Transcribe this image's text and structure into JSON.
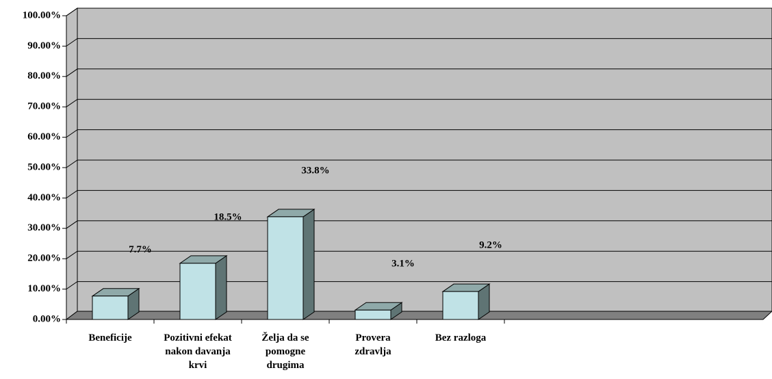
{
  "chart_data": {
    "type": "bar3d",
    "categories": [
      "Beneficije",
      "Pozitivni efekat nakon davanja krvi",
      "Želja da se pomogne drugima",
      "Provera zdravlja",
      "Bez razloga"
    ],
    "values": [
      7.7,
      18.5,
      33.8,
      3.1,
      9.2
    ],
    "value_labels": [
      "7.7%",
      "18.5%",
      "33.8%",
      "3.1%",
      "9.2%"
    ],
    "color": "#c0e2e6",
    "ylim": [
      0,
      100
    ],
    "yticks": [
      {
        "value": 0,
        "label": "0.00%"
      },
      {
        "value": 10,
        "label": "10.00%"
      },
      {
        "value": 20,
        "label": "20.00%"
      },
      {
        "value": 30,
        "label": "30.00%"
      },
      {
        "value": 40,
        "label": "40.00%"
      },
      {
        "value": 50,
        "label": "50.00%"
      },
      {
        "value": 60,
        "label": "60.00%"
      },
      {
        "value": 70,
        "label": "70.00%"
      },
      {
        "value": 80,
        "label": "80.00%"
      },
      {
        "value": 90,
        "label": "90.00%"
      },
      {
        "value": 100,
        "label": "100.00%"
      }
    ],
    "grid": true
  }
}
